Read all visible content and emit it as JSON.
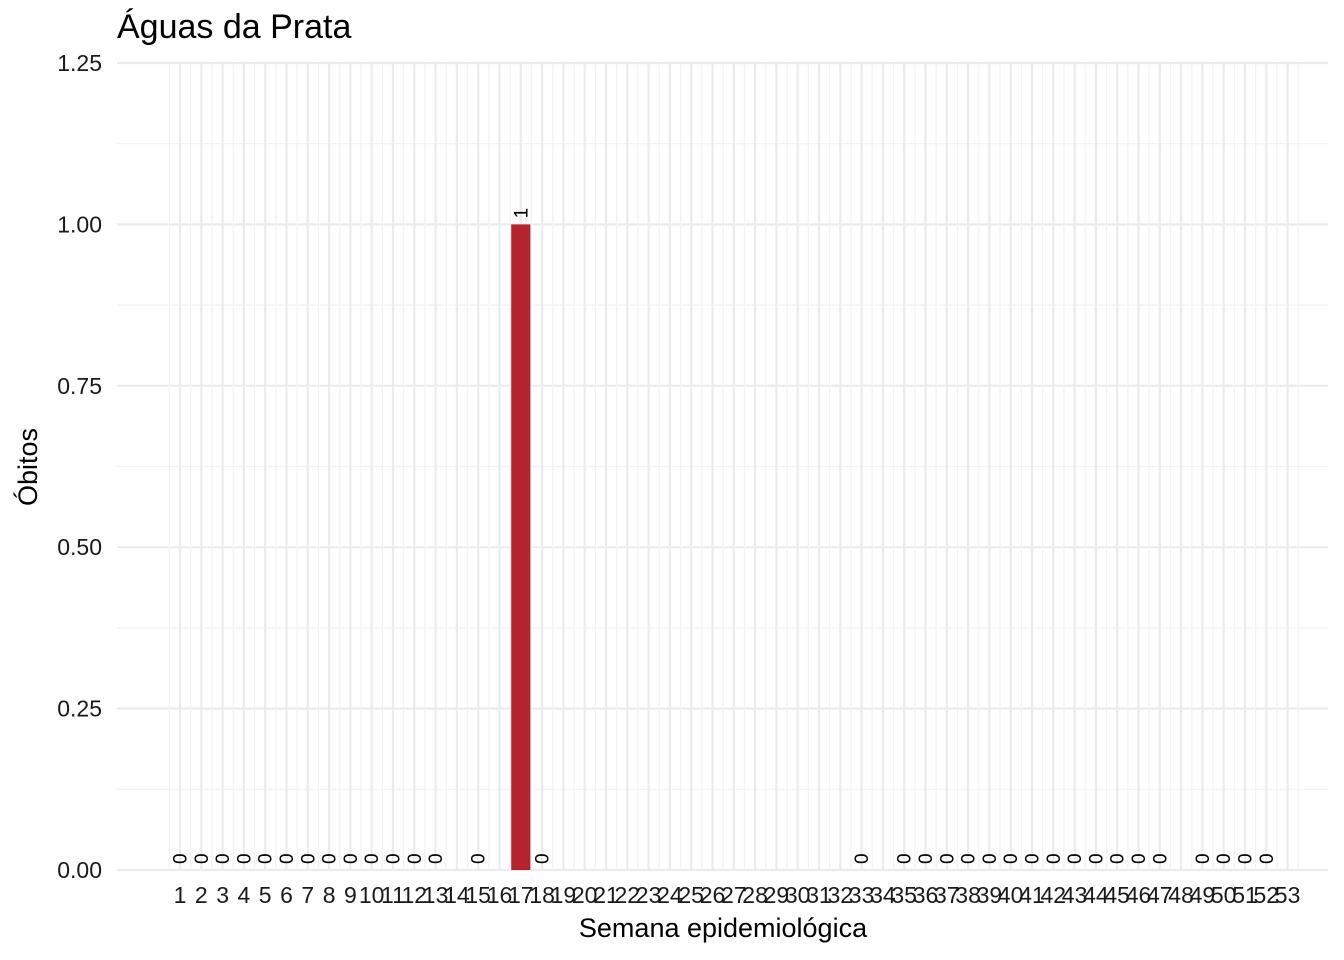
{
  "chart_data": {
    "type": "bar",
    "title": "Águas da Prata",
    "xlabel": "Semana epidemiológica",
    "ylabel": "Óbitos",
    "categories": [
      "1",
      "2",
      "3",
      "4",
      "5",
      "6",
      "7",
      "8",
      "9",
      "10",
      "11",
      "12",
      "13",
      "14",
      "15",
      "16",
      "17",
      "18",
      "19",
      "20",
      "21",
      "22",
      "23",
      "24",
      "25",
      "26",
      "27",
      "28",
      "29",
      "30",
      "31",
      "32",
      "33",
      "34",
      "35",
      "36",
      "37",
      "38",
      "39",
      "40",
      "41",
      "42",
      "43",
      "44",
      "45",
      "46",
      "47",
      "48",
      "49",
      "50",
      "51",
      "52",
      "53"
    ],
    "values": [
      0,
      0,
      0,
      0,
      0,
      0,
      0,
      0,
      0,
      0,
      0,
      0,
      0,
      null,
      0,
      null,
      1,
      0,
      null,
      null,
      null,
      null,
      null,
      null,
      null,
      null,
      null,
      null,
      null,
      null,
      null,
      null,
      0,
      null,
      0,
      0,
      0,
      0,
      0,
      0,
      0,
      0,
      0,
      0,
      0,
      0,
      0,
      null,
      0,
      0,
      0,
      0,
      null
    ],
    "ylim": [
      0,
      1.25
    ],
    "yticks": [
      "0.00",
      "0.25",
      "0.50",
      "0.75",
      "1.00",
      "1.25"
    ],
    "grid": true,
    "bar_color": "#b5232d",
    "legend": "none"
  }
}
